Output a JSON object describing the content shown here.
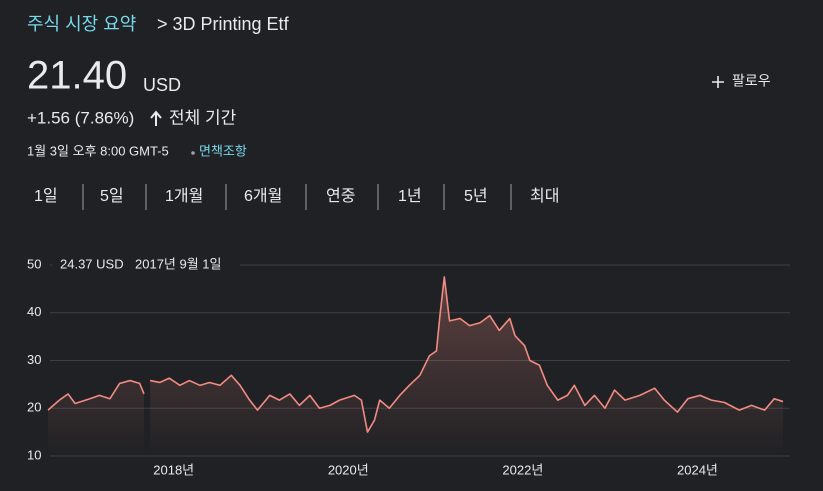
{
  "header": {
    "breadcrumb": "주식 시장 요약",
    "title": "> 3D Printing Etf",
    "price": "21.40",
    "currency": "USD",
    "follow": "팔로우",
    "change": "+1.56 (7.86%)",
    "period": "전체 기간",
    "timestamp": "1월 3일 오후 8:00 GMT-5",
    "disclaimer": "면책조항"
  },
  "tabs": [
    "1일",
    "5일",
    "1개월",
    "6개월",
    "연중",
    "1년",
    "5년",
    "최대"
  ],
  "chart_data": {
    "type": "line",
    "tooltip": {
      "price": "24.37 USD",
      "date": "2017년 9월 1일"
    },
    "x": [
      2016.56,
      2016.69,
      2016.79,
      2016.87,
      2017.04,
      2017.15,
      2017.27,
      2017.38,
      2017.5,
      2017.61,
      2017.66,
      2017.7,
      2017.73,
      2017.84,
      2017.95,
      2018.07,
      2018.18,
      2018.3,
      2018.41,
      2018.53,
      2018.66,
      2018.76,
      2018.87,
      2018.96,
      2019.1,
      2019.21,
      2019.33,
      2019.44,
      2019.56,
      2019.67,
      2019.79,
      2019.9,
      2020.07,
      2020.15,
      2020.22,
      2020.3,
      2020.36,
      2020.47,
      2020.59,
      2020.7,
      2020.82,
      2020.93,
      2021.01,
      2021.05,
      2021.1,
      2021.16,
      2021.28,
      2021.39,
      2021.51,
      2021.62,
      2021.73,
      2021.85,
      2021.91,
      2022.02,
      2022.08,
      2022.19,
      2022.28,
      2022.4,
      2022.51,
      2022.59,
      2022.71,
      2022.82,
      2022.94,
      2023.05,
      2023.17,
      2023.34,
      2023.51,
      2023.62,
      2023.77,
      2023.89,
      2024.03,
      2024.16,
      2024.31,
      2024.48,
      2024.62,
      2024.77,
      2024.88,
      2024.98
    ],
    "series": [
      {
        "color": "#f28b82",
        "values": [
          19.6,
          21.7,
          23,
          21,
          22,
          22.7,
          22,
          25.2,
          25.8,
          25.2,
          23,
          null,
          25.8,
          25.4,
          26.3,
          24.8,
          25.8,
          24.8,
          25.4,
          24.8,
          26.9,
          24.8,
          21.7,
          19.6,
          22.7,
          21.7,
          23,
          20.6,
          22.7,
          20,
          20.6,
          21.7,
          22.7,
          21.7,
          15,
          17.5,
          21.7,
          20,
          22.7,
          24.8,
          26.9,
          31,
          32,
          39.4,
          47.5,
          38.3,
          38.8,
          37.3,
          37.9,
          39.4,
          36.3,
          38.8,
          35.2,
          33.1,
          30,
          29,
          24.8,
          21.7,
          22.7,
          24.8,
          20.6,
          22.7,
          20,
          23.8,
          21.7,
          22.7,
          24.2,
          21.7,
          19.2,
          22,
          22.7,
          21.7,
          21.2,
          19.6,
          20.6,
          19.6,
          22,
          21.4
        ]
      }
    ],
    "xlim": [
      2016.56,
      2024.98
    ],
    "xticks": [
      {
        "value": 2018,
        "label": "2018년"
      },
      {
        "value": 2020,
        "label": "2020년"
      },
      {
        "value": 2022,
        "label": "2022년"
      },
      {
        "value": 2024,
        "label": "2024년"
      }
    ],
    "ylim": [
      10,
      50
    ],
    "yticks": [
      10,
      20,
      30,
      40,
      50
    ],
    "grid": true
  }
}
